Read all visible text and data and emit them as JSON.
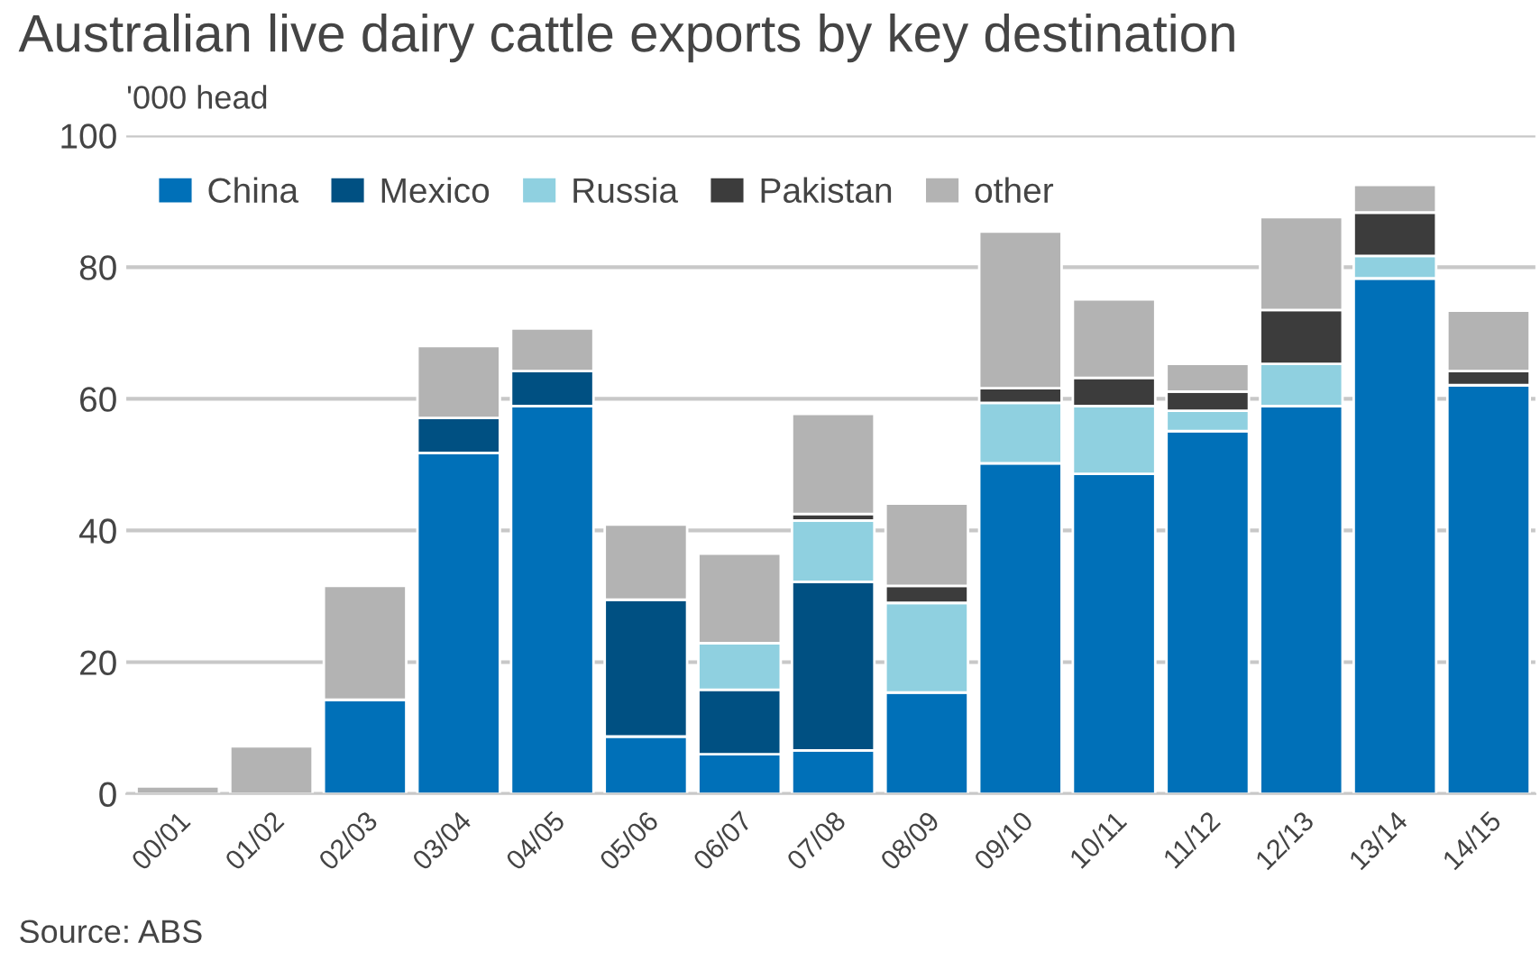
{
  "chart_data": {
    "type": "bar",
    "stacked": true,
    "title": "Australian live dairy cattle exports by key destination",
    "ylabel": "'000 head",
    "categories": [
      "00/01",
      "01/02",
      "02/03",
      "03/04",
      "04/05",
      "05/06",
      "06/07",
      "07/08",
      "08/09",
      "09/10",
      "10/11",
      "11/12",
      "12/13",
      "13/14",
      "14/15"
    ],
    "series": [
      {
        "name": "China",
        "color": "#0070b8",
        "values": [
          0,
          0,
          14.3,
          51.8,
          58.9,
          8.7,
          6.0,
          6.6,
          15.4,
          50.2,
          48.6,
          55.1,
          58.9,
          78.3,
          62.1
        ]
      },
      {
        "name": "Mexico",
        "color": "#005082",
        "values": [
          0,
          0,
          0,
          5.3,
          5.3,
          20.8,
          9.8,
          25.6,
          0,
          0,
          0,
          0,
          0,
          0,
          0
        ]
      },
      {
        "name": "Russia",
        "color": "#8fd0e0",
        "values": [
          0,
          0,
          0,
          0,
          0,
          0,
          7.1,
          9.3,
          13.6,
          9.2,
          10.3,
          3.1,
          6.4,
          3.4,
          0
        ]
      },
      {
        "name": "Pakistan",
        "color": "#3c3c3c",
        "values": [
          0,
          0,
          0,
          0,
          0,
          0,
          0,
          1.0,
          2.6,
          2.2,
          4.3,
          2.9,
          8.2,
          6.6,
          2.1
        ]
      },
      {
        "name": "other",
        "color": "#b3b3b3",
        "values": [
          1.1,
          7.2,
          17.3,
          10.9,
          6.5,
          11.4,
          13.6,
          15.2,
          12.5,
          23.8,
          11.9,
          4.2,
          14.1,
          4.2,
          9.2
        ]
      }
    ],
    "ylim": [
      0,
      100
    ],
    "yticks": [
      0,
      20,
      40,
      60,
      80,
      100
    ],
    "grid": "y",
    "legend": "top left",
    "annotations": [
      "Source: ABS"
    ]
  }
}
